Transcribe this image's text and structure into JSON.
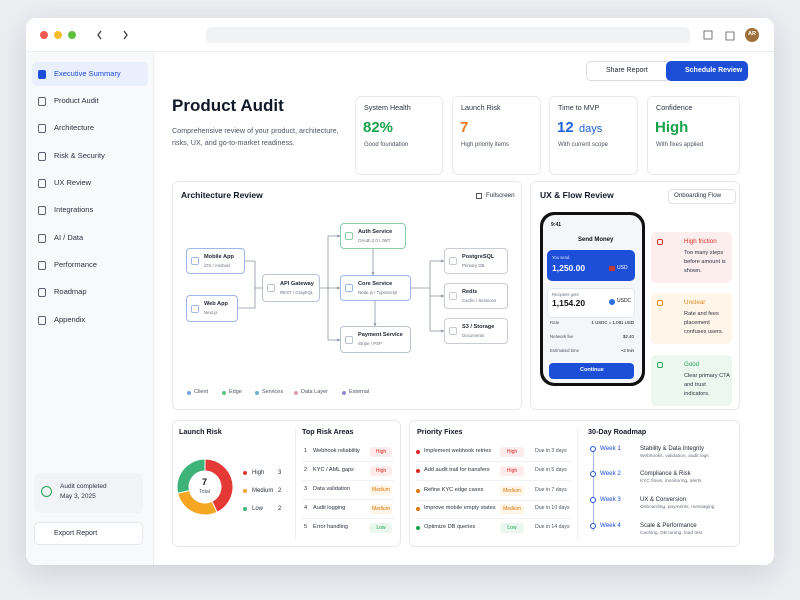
{
  "browser": {
    "avatar": "AR"
  },
  "sidebar": {
    "nav": [
      "Executive Summary",
      "Product Audit",
      "Architecture",
      "Risk & Security",
      "UX Review",
      "Integrations",
      "AI / Data",
      "Performance",
      "Roadmap",
      "Appendix"
    ],
    "status": {
      "title": "Audit completed",
      "date": "May 3, 2025"
    },
    "export": "Export Report"
  },
  "header": {
    "title": "Product Audit",
    "description": "Comprehensive review of your product, architecture, risks, UX, and go-to-market readiness.",
    "actions": [
      "Share Report",
      "Schedule Review"
    ]
  },
  "metrics": [
    {
      "label": "System Health",
      "value": "82%",
      "note": "Good foundation"
    },
    {
      "label": "Launch Risk",
      "value": "7",
      "note": "High priority items"
    },
    {
      "label": "Time to MVP",
      "value": "12",
      "unit": "days",
      "note": "With current scope"
    },
    {
      "label": "Confidence",
      "value": "High",
      "note": "With fixes applied"
    }
  ],
  "architecture": {
    "title": "Architecture Review",
    "action": "Fullscreen",
    "nodes": [
      {
        "label": "Mobile App",
        "sub": "iOS / Android"
      },
      {
        "label": "Web App",
        "sub": "Next.js"
      },
      {
        "label": "API Gateway",
        "sub": "REST / GraphQL"
      },
      {
        "label": "Auth Service",
        "sub": "OAuth 2.0 / JWT"
      },
      {
        "label": "Core Service",
        "sub": "Node.js / TypeScript"
      },
      {
        "label": "Payment Service",
        "sub": "Stripe / PSP"
      },
      {
        "label": "PostgreSQL",
        "sub": "Primary DB"
      },
      {
        "label": "Redis",
        "sub": "Cache / Sessions"
      },
      {
        "label": "S3 / Storage",
        "sub": "Documents"
      }
    ],
    "legend": [
      "Client",
      "Edge",
      "Services",
      "Data Layer",
      "External"
    ]
  },
  "ux": {
    "title": "UX & Flow Review",
    "filter": "Onboarding Flow",
    "phone": {
      "time": "9:41",
      "title": "Send Money",
      "send_label": "You send",
      "send_amount": "1,250.00",
      "send_currency": "USD",
      "receive_label": "Recipient gets",
      "receive_amount": "1,154.20",
      "receive_currency": "USDC",
      "details": [
        {
          "label": "Rate",
          "value": "1 USDC = 1.081 USD"
        },
        {
          "label": "Network fee",
          "value": "$2.40"
        },
        {
          "label": "Estimated time",
          "value": "~2 min"
        }
      ],
      "cta": "Continue"
    },
    "annotations": [
      {
        "tag": "High friction",
        "text": "Too many steps before amount is shown."
      },
      {
        "tag": "Unclear",
        "text": "Rate and fees placement confuses users."
      },
      {
        "tag": "Good",
        "text": "Clear primary CTA and trust indicators."
      }
    ]
  },
  "launch_risk": {
    "title": "Launch Risk",
    "total": 7,
    "total_label": "Total",
    "levels": [
      {
        "name": "High",
        "count": 3
      },
      {
        "name": "Medium",
        "count": 2
      },
      {
        "name": "Low",
        "count": 2
      }
    ]
  },
  "top_risks": {
    "title": "Top Risk Areas",
    "items": [
      {
        "rank": 1,
        "name": "Webhook reliability",
        "level": "High"
      },
      {
        "rank": 2,
        "name": "KYC / AML gaps",
        "level": "High"
      },
      {
        "rank": 3,
        "name": "Data validation",
        "level": "Medium"
      },
      {
        "rank": 4,
        "name": "Audit logging",
        "level": "Medium"
      },
      {
        "rank": 5,
        "name": "Error handling",
        "level": "Low"
      }
    ]
  },
  "priority_fixes": {
    "title": "Priority Fixes",
    "items": [
      {
        "name": "Implement webhook retries",
        "level": "High",
        "due": "Due in 3 days"
      },
      {
        "name": "Add audit trail for transfers",
        "level": "High",
        "due": "Due in 5 days"
      },
      {
        "name": "Refine KYC edge cases",
        "level": "Medium",
        "due": "Due in 7 days"
      },
      {
        "name": "Improve mobile empty states",
        "level": "Medium",
        "due": "Due in 10 days"
      },
      {
        "name": "Optimize DB queries",
        "level": "Low",
        "due": "Due in 14 days"
      }
    ]
  },
  "roadmap": {
    "title": "30-Day Roadmap",
    "weeks": [
      {
        "week": "Week 1",
        "title": "Stability & Data Integrity",
        "detail": "Webhooks, validation, audit logs"
      },
      {
        "week": "Week 2",
        "title": "Compliance & Risk",
        "detail": "KYC flows, monitoring, alerts"
      },
      {
        "week": "Week 3",
        "title": "UX & Conversion",
        "detail": "Onboarding, payments, messaging"
      },
      {
        "week": "Week 4",
        "title": "Scale & Performance",
        "detail": "Caching, DB tuning, load test"
      }
    ]
  }
}
